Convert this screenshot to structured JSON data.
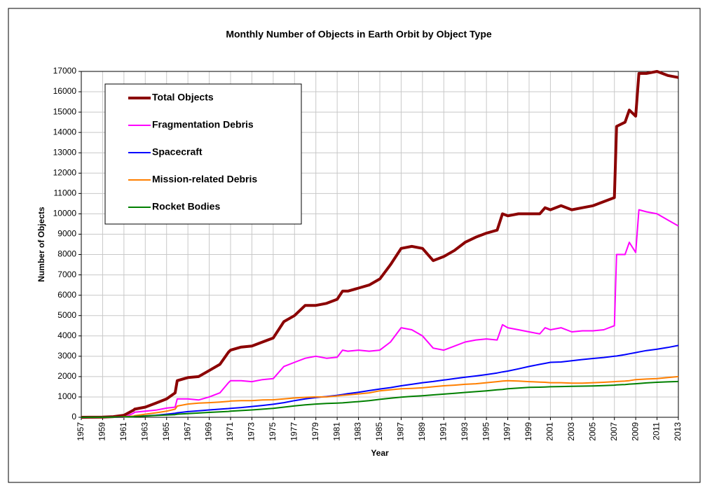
{
  "chart_data": {
    "type": "line",
    "title": "Monthly Number of Objects in Earth Orbit by Object Type",
    "x_label": "Year",
    "y_label": "Number of Objects",
    "x": [
      1957,
      1958,
      1959,
      1960,
      1961,
      1961.9,
      1962,
      1963,
      1964,
      1965,
      1965.8,
      1966,
      1967,
      1968,
      1969,
      1970,
      1970.8,
      1971,
      1972,
      1973,
      1974,
      1975,
      1976,
      1977,
      1978,
      1979,
      1980,
      1981,
      1981.5,
      1982,
      1983,
      1984,
      1985,
      1986,
      1987,
      1988,
      1989,
      1990,
      1991,
      1992,
      1993,
      1994,
      1995,
      1996,
      1996.5,
      1997,
      1998,
      1999,
      2000,
      2000.5,
      2001,
      2002,
      2003,
      2004,
      2005,
      2006,
      2007,
      2007.2,
      2008,
      2008.4,
      2009,
      2009.3,
      2010,
      2011,
      2012,
      2013
    ],
    "series": [
      {
        "name": "Total Objects",
        "color": "#8b0000",
        "values": [
          0,
          5,
          10,
          30,
          100,
          350,
          400,
          500,
          700,
          900,
          1200,
          1800,
          1950,
          2000,
          2300,
          2600,
          3200,
          3300,
          3450,
          3500,
          3700,
          3900,
          4700,
          5000,
          5500,
          5500,
          5600,
          5800,
          6200,
          6200,
          6350,
          6500,
          6800,
          7500,
          8300,
          8400,
          8300,
          7700,
          7900,
          8200,
          8600,
          8850,
          9050,
          9200,
          10000,
          9900,
          10000,
          10000,
          10000,
          10300,
          10200,
          10400,
          10200,
          10300,
          10400,
          10600,
          10800,
          14300,
          14500,
          15100,
          14800,
          16900,
          16900,
          17000,
          16800,
          16700
        ]
      },
      {
        "name": "Fragmentation Debris",
        "color": "#ff00ff",
        "values": [
          0,
          0,
          0,
          0,
          0,
          200,
          250,
          300,
          350,
          450,
          500,
          900,
          900,
          850,
          1000,
          1200,
          1700,
          1800,
          1800,
          1750,
          1850,
          1900,
          2500,
          2700,
          2900,
          3000,
          2900,
          2950,
          3300,
          3250,
          3300,
          3250,
          3300,
          3700,
          4400,
          4300,
          4000,
          3400,
          3300,
          3500,
          3700,
          3800,
          3850,
          3800,
          4550,
          4400,
          4300,
          4200,
          4100,
          4400,
          4300,
          4400,
          4200,
          4250,
          4250,
          4300,
          4500,
          8000,
          8000,
          8600,
          8100,
          10200,
          10100,
          10000,
          9700,
          9400
        ]
      },
      {
        "name": "Spacecraft",
        "color": "#0000ff",
        "values": [
          0,
          2,
          5,
          10,
          20,
          40,
          50,
          70,
          100,
          150,
          200,
          220,
          280,
          320,
          360,
          400,
          430,
          440,
          480,
          530,
          580,
          640,
          720,
          820,
          900,
          970,
          1020,
          1080,
          1120,
          1160,
          1230,
          1310,
          1390,
          1460,
          1550,
          1620,
          1700,
          1760,
          1830,
          1900,
          1970,
          2030,
          2100,
          2180,
          2230,
          2270,
          2380,
          2500,
          2600,
          2650,
          2700,
          2720,
          2780,
          2840,
          2890,
          2940,
          3000,
          3010,
          3080,
          3120,
          3180,
          3210,
          3280,
          3350,
          3430,
          3530
        ]
      },
      {
        "name": "Mission-related Debris",
        "color": "#ff7f00",
        "values": [
          0,
          2,
          5,
          10,
          30,
          60,
          80,
          150,
          220,
          300,
          400,
          550,
          650,
          700,
          720,
          750,
          780,
          800,
          820,
          820,
          850,
          860,
          900,
          950,
          980,
          1000,
          1000,
          1050,
          1080,
          1100,
          1150,
          1200,
          1300,
          1350,
          1400,
          1420,
          1450,
          1500,
          1550,
          1580,
          1620,
          1650,
          1700,
          1750,
          1780,
          1800,
          1780,
          1750,
          1730,
          1720,
          1700,
          1700,
          1680,
          1680,
          1700,
          1720,
          1750,
          1760,
          1780,
          1800,
          1850,
          1860,
          1880,
          1900,
          1950,
          2000
        ]
      },
      {
        "name": "Rocket Bodies",
        "color": "#008000",
        "values": [
          0,
          2,
          5,
          10,
          20,
          30,
          40,
          60,
          90,
          110,
          130,
          150,
          180,
          210,
          240,
          270,
          290,
          300,
          330,
          360,
          400,
          440,
          500,
          560,
          610,
          650,
          680,
          700,
          710,
          730,
          770,
          820,
          880,
          940,
          990,
          1030,
          1060,
          1100,
          1140,
          1180,
          1220,
          1260,
          1300,
          1350,
          1370,
          1400,
          1440,
          1470,
          1480,
          1490,
          1500,
          1510,
          1520,
          1530,
          1540,
          1560,
          1580,
          1590,
          1610,
          1630,
          1650,
          1660,
          1690,
          1720,
          1740,
          1760
        ]
      }
    ],
    "xlim": [
      1957,
      2013
    ],
    "xticks": [
      1957,
      1959,
      1961,
      1963,
      1965,
      1967,
      1969,
      1971,
      1973,
      1975,
      1977,
      1979,
      1981,
      1983,
      1985,
      1987,
      1989,
      1991,
      1993,
      1995,
      1997,
      1999,
      2001,
      2003,
      2005,
      2007,
      2009,
      2011,
      2013
    ],
    "ylim": [
      0,
      17000
    ],
    "yticks": [
      0,
      1000,
      2000,
      3000,
      4000,
      5000,
      6000,
      7000,
      8000,
      9000,
      10000,
      11000,
      12000,
      13000,
      14000,
      15000,
      16000,
      17000
    ],
    "grid": true,
    "legend": "upper left"
  }
}
